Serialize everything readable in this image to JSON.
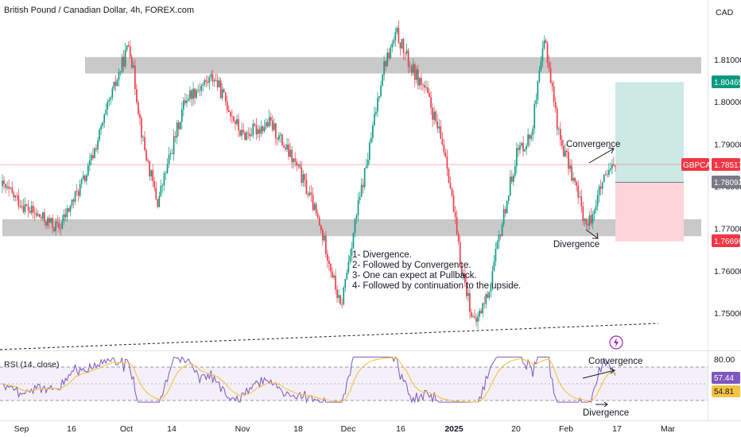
{
  "header": {
    "title": "British Pound / Canadian Dollar, 4h, FOREX.com",
    "currency": "CAD"
  },
  "price_axis": {
    "ticks": [
      "1.81000",
      "1.80000",
      "1.79000",
      "1.78000",
      "1.77000",
      "1.76000",
      "1.75000"
    ],
    "tags": {
      "target": {
        "value": "1.80465",
        "color": "#089981"
      },
      "symbol": {
        "label": "GBPCAD",
        "value": "1.78517",
        "color": "#f23645"
      },
      "entry": {
        "value": "1.78093",
        "color": "#787b86"
      },
      "stop": {
        "value": "1.76696",
        "color": "#f23645"
      }
    }
  },
  "time_axis": {
    "labels": [
      "Sep",
      "16",
      "Oct",
      "14",
      "Nov",
      "18",
      "Dec",
      "16",
      "2025",
      "20",
      "Feb",
      "17",
      "Mar"
    ]
  },
  "annotations": {
    "notes": [
      "1- Divergence.",
      "2- Followed by Convergence.",
      "3- One can expect at Pullback.",
      "4- Followed by continuation to the upside."
    ],
    "price_convergence": "Convergence",
    "price_divergence": "Divergence",
    "rsi_convergence": "Convergence",
    "rsi_divergence": "Divergence"
  },
  "rsi_panel": {
    "title": "RSI (14, close)",
    "level_label": "80.00",
    "rsi_value": "57.44",
    "ma_value": "54.81",
    "rsi_color": "#7e57c2",
    "ma_color": "#f5c242"
  },
  "colors": {
    "up": "#089981",
    "down": "#f23645",
    "zone": "#b2b2b2",
    "profit": "#cce9e4",
    "loss": "#fbd5d8"
  },
  "chart_data": {
    "type": "candlestick",
    "price_range": [
      1.7455,
      1.8185
    ],
    "resistance_zone": [
      1.8067,
      1.8106
    ],
    "support_zone": [
      1.7682,
      1.7722
    ],
    "position": {
      "target": 1.80465,
      "entry": 1.78093,
      "stop": 1.76696
    },
    "path": [
      [
        0,
        1.78
      ],
      [
        0.04,
        1.774
      ],
      [
        0.08,
        1.77
      ],
      [
        0.12,
        1.783
      ],
      [
        0.16,
        1.804
      ],
      [
        0.18,
        1.814
      ],
      [
        0.2,
        1.79
      ],
      [
        0.22,
        1.776
      ],
      [
        0.26,
        1.801
      ],
      [
        0.3,
        1.806
      ],
      [
        0.34,
        1.792
      ],
      [
        0.38,
        1.795
      ],
      [
        0.42,
        1.784
      ],
      [
        0.44,
        1.776
      ],
      [
        0.46,
        1.765
      ],
      [
        0.48,
        1.751
      ],
      [
        0.5,
        1.771
      ],
      [
        0.52,
        1.788
      ],
      [
        0.54,
        1.808
      ],
      [
        0.56,
        1.816
      ],
      [
        0.58,
        1.808
      ],
      [
        0.6,
        1.803
      ],
      [
        0.63,
        1.787
      ],
      [
        0.65,
        1.762
      ],
      [
        0.67,
        1.747
      ],
      [
        0.69,
        1.755
      ],
      [
        0.71,
        1.772
      ],
      [
        0.73,
        1.788
      ],
      [
        0.75,
        1.792
      ],
      [
        0.77,
        1.815
      ],
      [
        0.79,
        1.792
      ],
      [
        0.81,
        1.782
      ],
      [
        0.83,
        1.77
      ],
      [
        0.85,
        1.78
      ],
      [
        0.87,
        1.7852
      ]
    ]
  }
}
